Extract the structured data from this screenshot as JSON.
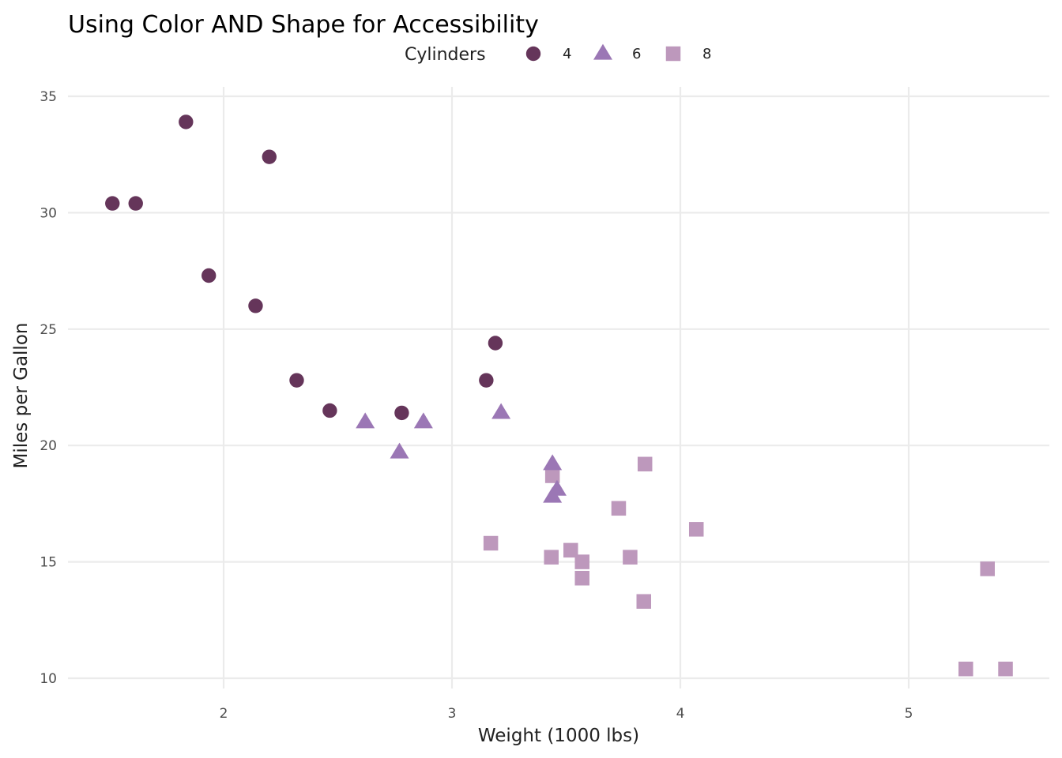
{
  "chart_data": {
    "type": "scatter",
    "title": "Using Color AND Shape for Accessibility",
    "xlabel": "Weight (1000 lbs)",
    "ylabel": "Miles per Gallon",
    "xlim": [
      1.32,
      5.62
    ],
    "ylim": [
      9.4,
      35.6
    ],
    "x_ticks": [
      2,
      3,
      4,
      5
    ],
    "y_ticks": [
      10,
      15,
      20,
      25,
      30,
      35
    ],
    "grid": true,
    "legend": {
      "title": "Cylinders",
      "placement": "top",
      "entries": [
        {
          "label": "4",
          "shape": "circle",
          "color": "#65355a"
        },
        {
          "label": "6",
          "shape": "triangle",
          "color": "#9b77b5"
        },
        {
          "label": "8",
          "shape": "square",
          "color": "#bd98bc"
        }
      ]
    },
    "series": [
      {
        "name": "4",
        "shape": "circle",
        "color": "#65355a",
        "points": [
          {
            "x": 2.32,
            "y": 22.8
          },
          {
            "x": 3.19,
            "y": 24.4
          },
          {
            "x": 3.15,
            "y": 22.8
          },
          {
            "x": 2.2,
            "y": 32.4
          },
          {
            "x": 1.615,
            "y": 30.4
          },
          {
            "x": 1.835,
            "y": 33.9
          },
          {
            "x": 2.465,
            "y": 21.5
          },
          {
            "x": 1.935,
            "y": 27.3
          },
          {
            "x": 2.14,
            "y": 26.0
          },
          {
            "x": 1.513,
            "y": 30.4
          },
          {
            "x": 2.78,
            "y": 21.4
          }
        ]
      },
      {
        "name": "6",
        "shape": "triangle",
        "color": "#9b77b5",
        "points": [
          {
            "x": 2.62,
            "y": 21.0
          },
          {
            "x": 2.875,
            "y": 21.0
          },
          {
            "x": 3.215,
            "y": 21.4
          },
          {
            "x": 3.46,
            "y": 18.1
          },
          {
            "x": 3.44,
            "y": 19.2
          },
          {
            "x": 3.44,
            "y": 17.8
          },
          {
            "x": 2.77,
            "y": 19.7
          }
        ]
      },
      {
        "name": "8",
        "shape": "square",
        "color": "#bd98bc",
        "points": [
          {
            "x": 3.44,
            "y": 18.7
          },
          {
            "x": 3.57,
            "y": 14.3
          },
          {
            "x": 4.07,
            "y": 16.4
          },
          {
            "x": 3.73,
            "y": 17.3
          },
          {
            "x": 3.78,
            "y": 15.2
          },
          {
            "x": 5.25,
            "y": 10.4
          },
          {
            "x": 5.424,
            "y": 10.4
          },
          {
            "x": 5.345,
            "y": 14.7
          },
          {
            "x": 3.52,
            "y": 15.5
          },
          {
            "x": 3.435,
            "y": 15.2
          },
          {
            "x": 3.84,
            "y": 13.3
          },
          {
            "x": 3.845,
            "y": 19.2
          },
          {
            "x": 3.17,
            "y": 15.8
          },
          {
            "x": 3.57,
            "y": 15.0
          }
        ]
      }
    ]
  }
}
